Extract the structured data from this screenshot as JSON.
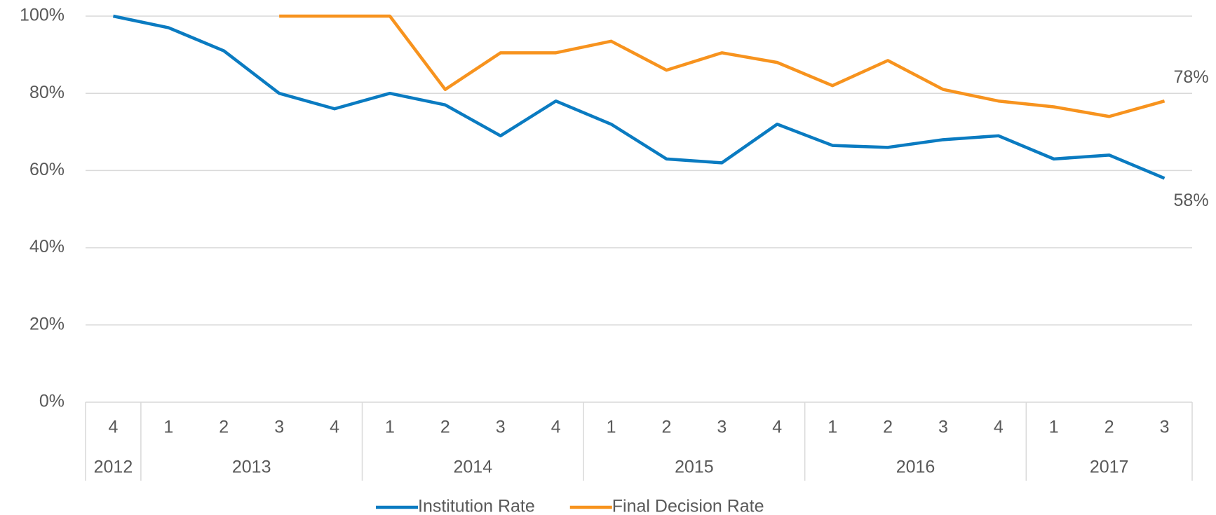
{
  "chart_data": {
    "type": "line",
    "categories": [
      "4",
      "1",
      "2",
      "3",
      "4",
      "1",
      "2",
      "3",
      "4",
      "1",
      "2",
      "3",
      "4",
      "1",
      "2",
      "3",
      "4",
      "1",
      "2",
      "3"
    ],
    "category_groups": [
      {
        "label": "2012",
        "count": 1
      },
      {
        "label": "2013",
        "count": 4
      },
      {
        "label": "2014",
        "count": 4
      },
      {
        "label": "2015",
        "count": 4
      },
      {
        "label": "2016",
        "count": 4
      },
      {
        "label": "2017",
        "count": 3
      }
    ],
    "series": [
      {
        "name": "Institution Rate",
        "color": "#0a7bc1",
        "values": [
          100,
          97,
          91,
          80,
          76,
          80,
          77,
          69,
          78,
          72,
          63,
          62,
          72,
          66.5,
          66,
          68,
          69,
          63,
          64,
          58
        ],
        "value_labels": [
          null,
          null,
          null,
          null,
          null,
          null,
          null,
          null,
          null,
          null,
          null,
          null,
          null,
          null,
          null,
          null,
          null,
          null,
          null,
          "58%"
        ]
      },
      {
        "name": "Final Decision Rate",
        "color": "#f7931e",
        "values": [
          null,
          null,
          null,
          100,
          100,
          100,
          81,
          90.5,
          90.5,
          93.5,
          86,
          90.5,
          88,
          82,
          88.5,
          81,
          78,
          76.5,
          74,
          78
        ],
        "value_labels": [
          null,
          null,
          null,
          null,
          null,
          null,
          null,
          null,
          null,
          null,
          null,
          null,
          null,
          null,
          null,
          null,
          null,
          null,
          null,
          "78%"
        ]
      }
    ],
    "ylim": [
      0,
      100
    ],
    "yticks": [
      {
        "value": 0,
        "label": "0%"
      },
      {
        "value": 20,
        "label": "20%"
      },
      {
        "value": 40,
        "label": "40%"
      },
      {
        "value": 60,
        "label": "60%"
      },
      {
        "value": 80,
        "label": "80%"
      },
      {
        "value": 100,
        "label": "100%"
      }
    ],
    "grid": true,
    "legend": "bottom"
  }
}
